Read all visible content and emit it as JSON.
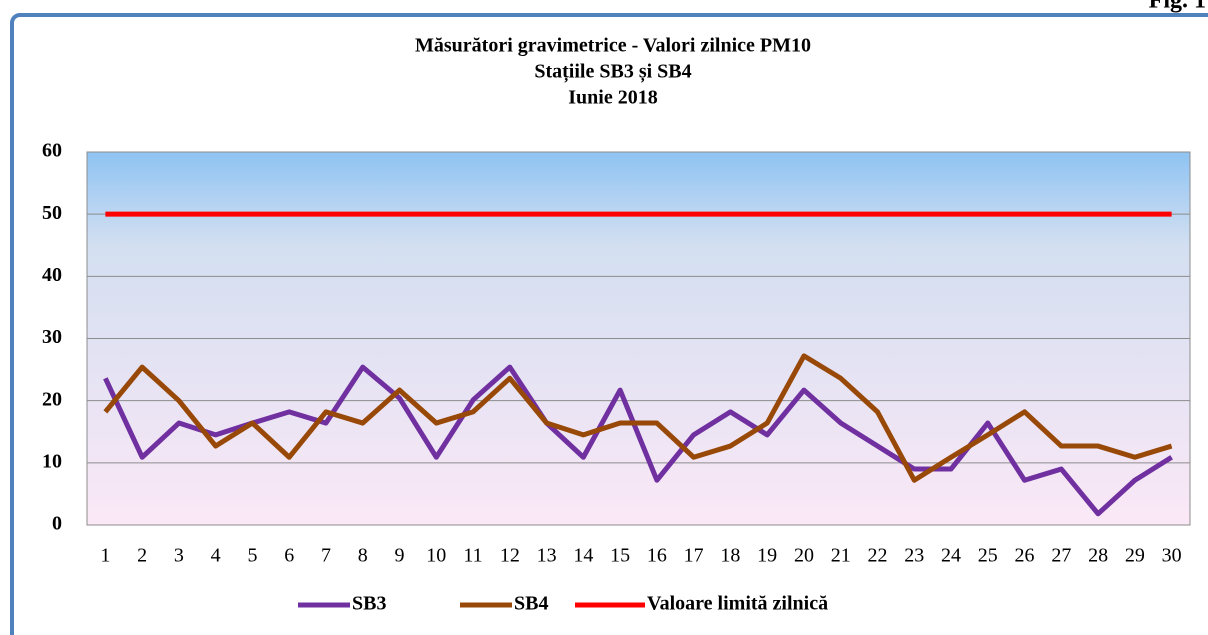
{
  "fig_label": "Fig. 1",
  "chart_data": {
    "type": "line",
    "title": [
      "Măsurători gravimetrice - Valori zilnice PM10",
      "Stațiile  SB3 și SB4",
      "Iunie 2018"
    ],
    "categories": [
      "1",
      "2",
      "3",
      "4",
      "5",
      "6",
      "7",
      "8",
      "9",
      "10",
      "11",
      "12",
      "13",
      "14",
      "15",
      "16",
      "17",
      "18",
      "19",
      "20",
      "21",
      "22",
      "23",
      "24",
      "25",
      "26",
      "27",
      "28",
      "29",
      "30"
    ],
    "series": [
      {
        "name": "SB3",
        "color": "#7030a0",
        "values": [
          23.6,
          10.9,
          16.4,
          14.5,
          16.4,
          18.2,
          16.4,
          25.4,
          20.4,
          10.9,
          20.1,
          25.4,
          16.4,
          10.9,
          21.7,
          7.2,
          14.5,
          18.2,
          14.5,
          21.7,
          16.4,
          12.7,
          9,
          9,
          16.4,
          7.2,
          9,
          1.8,
          7.2,
          10.9
        ]
      },
      {
        "name": "SB4",
        "color": "#984807",
        "values": [
          18.2,
          25.4,
          20,
          12.7,
          16.4,
          10.9,
          18.2,
          16.4,
          21.7,
          16.4,
          18.2,
          23.6,
          16.4,
          14.5,
          16.4,
          16.4,
          10.9,
          12.7,
          16.4,
          27.2,
          23.6,
          18.2,
          7.2,
          10.9,
          14.5,
          18.2,
          12.7,
          12.7,
          10.9,
          12.7
        ]
      },
      {
        "name": "Valoare limită zilnică",
        "color": "#ff0000",
        "values": [
          50,
          50,
          50,
          50,
          50,
          50,
          50,
          50,
          50,
          50,
          50,
          50,
          50,
          50,
          50,
          50,
          50,
          50,
          50,
          50,
          50,
          50,
          50,
          50,
          50,
          50,
          50,
          50,
          50,
          50
        ]
      }
    ],
    "ylim": [
      0,
      60
    ],
    "yticks": [
      0,
      10,
      20,
      30,
      40,
      50,
      60
    ],
    "grid": true,
    "legend": "bottom"
  }
}
